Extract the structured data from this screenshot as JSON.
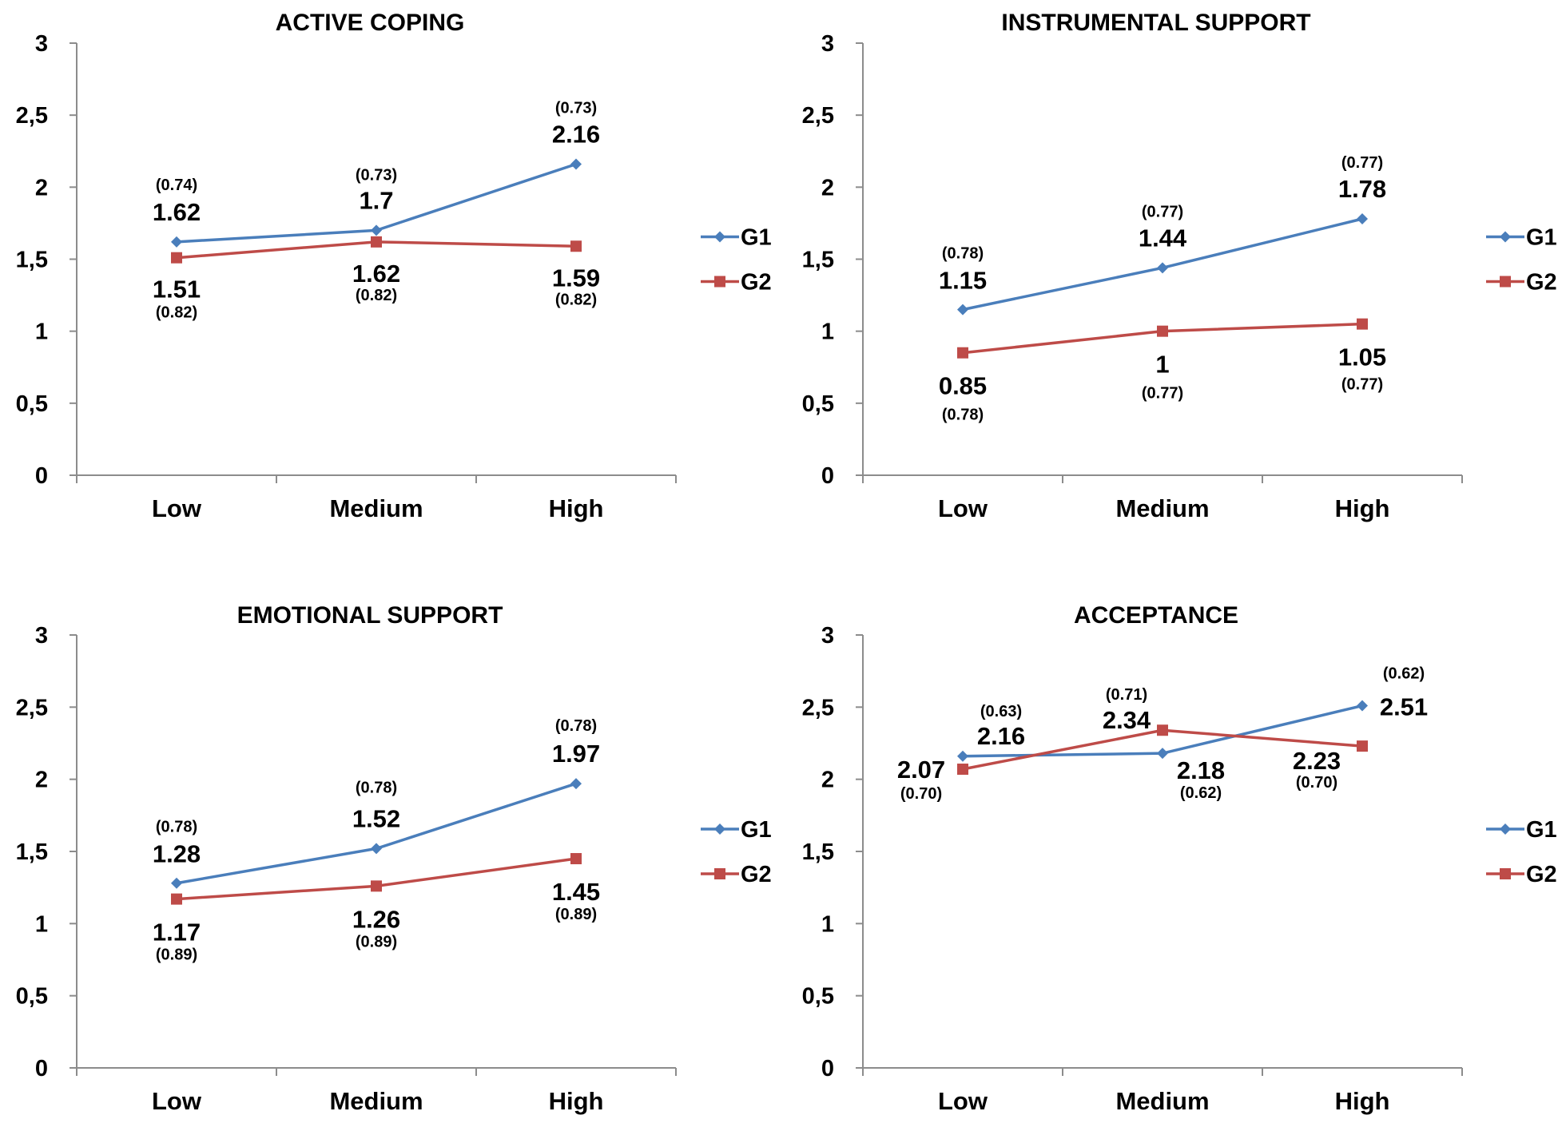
{
  "colors": {
    "G1": "#4a7ebb",
    "G2": "#be4b48",
    "axis": "#8c8c8c"
  },
  "chart_data": [
    {
      "type": "line",
      "title": "ACTIVE COPING",
      "categories": [
        "Low",
        "Medium",
        "High"
      ],
      "yticks": [
        "0",
        "0,5",
        "1",
        "1,5",
        "2",
        "2,5",
        "3"
      ],
      "ylim": [
        0,
        3
      ],
      "legend": "right",
      "series": [
        {
          "name": "G1",
          "marker": "diamond",
          "values": [
            1.62,
            1.7,
            2.16
          ],
          "labels": [
            "1.62",
            "1.7",
            "2.16"
          ],
          "sd": [
            "(0.74)",
            "(0.73)",
            "(0.73)"
          ]
        },
        {
          "name": "G2",
          "marker": "square",
          "values": [
            1.51,
            1.62,
            1.59
          ],
          "labels": [
            "1.51",
            "1.62",
            "1.59"
          ],
          "sd": [
            "(0.82)",
            "(0.82)",
            "(0.82)"
          ]
        }
      ]
    },
    {
      "type": "line",
      "title": "INSTRUMENTAL SUPPORT",
      "categories": [
        "Low",
        "Medium",
        "High"
      ],
      "yticks": [
        "0",
        "0,5",
        "1",
        "1,5",
        "2",
        "2,5",
        "3"
      ],
      "ylim": [
        0,
        3
      ],
      "legend": "right",
      "series": [
        {
          "name": "G1",
          "marker": "diamond",
          "values": [
            1.15,
            1.44,
            1.78
          ],
          "labels": [
            "1.15",
            "1.44",
            "1.78"
          ],
          "sd": [
            "(0.78)",
            "(0.77)",
            "(0.77)"
          ]
        },
        {
          "name": "G2",
          "marker": "square",
          "values": [
            0.85,
            1,
            1.05
          ],
          "labels": [
            "0.85",
            "1",
            "1.05"
          ],
          "sd": [
            "(0.78)",
            "(0.77)",
            "(0.77)"
          ]
        }
      ]
    },
    {
      "type": "line",
      "title": "EMOTIONAL SUPPORT",
      "categories": [
        "Low",
        "Medium",
        "High"
      ],
      "yticks": [
        "0",
        "0,5",
        "1",
        "1,5",
        "2",
        "2,5",
        "3"
      ],
      "ylim": [
        0,
        3
      ],
      "legend": "right",
      "series": [
        {
          "name": "G1",
          "marker": "diamond",
          "values": [
            1.28,
            1.52,
            1.97
          ],
          "labels": [
            "1.28",
            "1.52",
            "1.97"
          ],
          "sd": [
            "(0.78)",
            "(0.78)",
            "(0.78)"
          ]
        },
        {
          "name": "G2",
          "marker": "square",
          "values": [
            1.17,
            1.26,
            1.45
          ],
          "labels": [
            "1.17",
            "1.26",
            "1.45"
          ],
          "sd": [
            "(0.89)",
            "(0.89)",
            "(0.89)"
          ]
        }
      ]
    },
    {
      "type": "line",
      "title": "ACCEPTANCE",
      "categories": [
        "Low",
        "Medium",
        "High"
      ],
      "yticks": [
        "0",
        "0,5",
        "1",
        "1,5",
        "2",
        "2,5",
        "3"
      ],
      "ylim": [
        0,
        3
      ],
      "legend": "right",
      "series": [
        {
          "name": "G1",
          "marker": "diamond",
          "values": [
            2.16,
            2.18,
            2.51
          ],
          "labels": [
            "2.16",
            "2.18",
            "2.51"
          ],
          "sd": [
            "(0.63)",
            "(0.62)",
            "(0.62)"
          ]
        },
        {
          "name": "G2",
          "marker": "square",
          "values": [
            2.07,
            2.34,
            2.23
          ],
          "labels": [
            "2.07",
            "2.34",
            "2.23"
          ],
          "sd": [
            "(0.70)",
            "(0.71)",
            "(0.70)"
          ]
        }
      ]
    }
  ]
}
